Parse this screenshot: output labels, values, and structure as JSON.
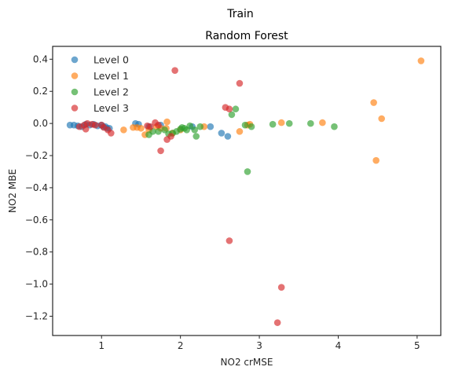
{
  "suptitle": "Train",
  "chart_data": {
    "type": "scatter",
    "title": "Random Forest",
    "xlabel": "NO2 crMSE",
    "ylabel": "NO2 MBE",
    "xlim": [
      0.38,
      5.3
    ],
    "ylim": [
      -1.32,
      0.48
    ],
    "xticks": [
      1,
      2,
      3,
      4,
      5
    ],
    "yticks": [
      0.4,
      0.2,
      0.0,
      -0.2,
      -0.4,
      -0.6,
      -0.8,
      -1.0,
      -1.2
    ],
    "ytick_labels": [
      "0.4",
      "0.2",
      "0.0",
      "−0.2",
      "−0.4",
      "−0.6",
      "−0.8",
      "−1.0",
      "−1.2"
    ],
    "xtick_labels": [
      "1",
      "2",
      "3",
      "4",
      "5"
    ],
    "grid": false,
    "legend_placement": "top-left",
    "series": [
      {
        "name": "Level 0",
        "color": "#1f77b4",
        "points": [
          [
            0.6,
            -0.01
          ],
          [
            0.65,
            -0.01
          ],
          [
            0.7,
            -0.015
          ],
          [
            0.75,
            -0.02
          ],
          [
            0.8,
            -0.005
          ],
          [
            0.85,
            -0.01
          ],
          [
            0.9,
            -0.005
          ],
          [
            0.95,
            -0.015
          ],
          [
            1.0,
            -0.01
          ],
          [
            1.02,
            -0.02
          ],
          [
            1.05,
            -0.02
          ],
          [
            1.07,
            -0.03
          ],
          [
            1.1,
            -0.03
          ],
          [
            1.43,
            0.0
          ],
          [
            1.47,
            -0.005
          ],
          [
            1.6,
            -0.02
          ],
          [
            1.75,
            -0.01
          ],
          [
            2.15,
            -0.02
          ],
          [
            2.38,
            -0.02
          ],
          [
            2.52,
            -0.06
          ],
          [
            2.6,
            -0.08
          ]
        ]
      },
      {
        "name": "Level 1",
        "color": "#ff7f0e",
        "points": [
          [
            1.28,
            -0.04
          ],
          [
            1.4,
            -0.025
          ],
          [
            1.45,
            -0.025
          ],
          [
            1.5,
            -0.03
          ],
          [
            1.55,
            -0.07
          ],
          [
            1.6,
            -0.04
          ],
          [
            1.7,
            -0.02
          ],
          [
            1.75,
            -0.03
          ],
          [
            1.82,
            -0.03
          ],
          [
            1.83,
            0.01
          ],
          [
            1.9,
            -0.06
          ],
          [
            2.0,
            -0.04
          ],
          [
            2.3,
            -0.02
          ],
          [
            2.75,
            -0.05
          ],
          [
            2.85,
            -0.01
          ],
          [
            2.88,
            -0.005
          ],
          [
            3.28,
            0.005
          ],
          [
            3.8,
            0.005
          ],
          [
            4.45,
            0.13
          ],
          [
            4.48,
            -0.23
          ],
          [
            4.55,
            0.03
          ],
          [
            5.05,
            0.39
          ]
        ]
      },
      {
        "name": "Level 2",
        "color": "#2ca02c",
        "points": [
          [
            1.6,
            -0.07
          ],
          [
            1.65,
            -0.05
          ],
          [
            1.72,
            -0.05
          ],
          [
            1.8,
            -0.04
          ],
          [
            1.85,
            -0.065
          ],
          [
            1.9,
            -0.06
          ],
          [
            1.95,
            -0.05
          ],
          [
            2.0,
            -0.035
          ],
          [
            2.02,
            -0.025
          ],
          [
            2.05,
            -0.03
          ],
          [
            2.08,
            -0.04
          ],
          [
            2.12,
            -0.015
          ],
          [
            2.18,
            -0.04
          ],
          [
            2.2,
            -0.08
          ],
          [
            2.25,
            -0.02
          ],
          [
            2.65,
            0.055
          ],
          [
            2.7,
            0.09
          ],
          [
            2.82,
            -0.01
          ],
          [
            2.85,
            -0.3
          ],
          [
            2.9,
            -0.02
          ],
          [
            3.17,
            -0.005
          ],
          [
            3.38,
            0.0
          ],
          [
            3.65,
            0.0
          ],
          [
            3.95,
            -0.02
          ]
        ]
      },
      {
        "name": "Level 3",
        "color": "#d62728",
        "points": [
          [
            0.72,
            -0.02
          ],
          [
            0.78,
            -0.01
          ],
          [
            0.8,
            -0.035
          ],
          [
            0.82,
            0.0
          ],
          [
            0.88,
            -0.005
          ],
          [
            0.92,
            -0.01
          ],
          [
            1.0,
            -0.01
          ],
          [
            1.03,
            -0.025
          ],
          [
            1.08,
            -0.04
          ],
          [
            1.12,
            -0.06
          ],
          [
            1.58,
            -0.015
          ],
          [
            1.62,
            -0.02
          ],
          [
            1.68,
            0.005
          ],
          [
            1.72,
            -0.01
          ],
          [
            1.75,
            -0.17
          ],
          [
            1.83,
            -0.1
          ],
          [
            1.88,
            -0.08
          ],
          [
            1.93,
            0.33
          ],
          [
            2.57,
            0.1
          ],
          [
            2.62,
            -0.73
          ],
          [
            2.62,
            0.09
          ],
          [
            2.75,
            0.25
          ],
          [
            3.23,
            -1.24
          ],
          [
            3.28,
            -1.02
          ]
        ]
      }
    ]
  }
}
